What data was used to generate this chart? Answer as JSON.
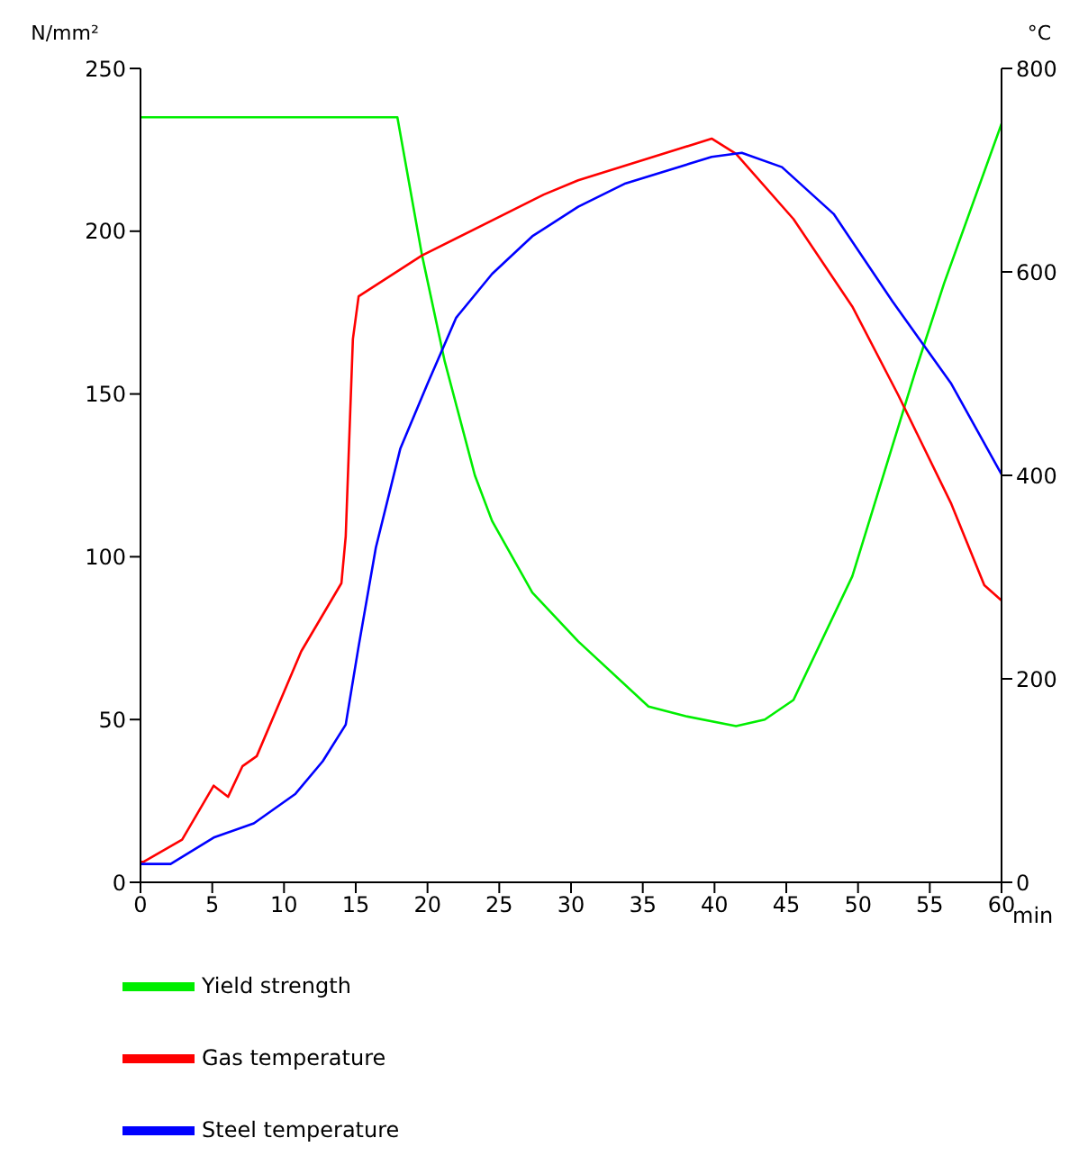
{
  "chart_data": {
    "type": "line",
    "xlabel": "min",
    "ylabel": "N/mm²",
    "y2label": "°C",
    "xlim": [
      0,
      60
    ],
    "xticks": [
      0,
      5,
      10,
      15,
      20,
      25,
      30,
      35,
      40,
      45,
      50,
      55,
      60
    ],
    "ylim": [
      0,
      250
    ],
    "yticks": [
      0,
      50,
      100,
      150,
      200,
      250
    ],
    "y2lim": [
      0,
      800
    ],
    "y2ticks": [
      0,
      200,
      400,
      600,
      800
    ],
    "grid": false,
    "legend": "bottom",
    "marker": "none",
    "line_style": "solid",
    "series": [
      {
        "name": "Yield strength",
        "color": "#00ee00",
        "x": [
          0,
          17.9,
          19.6,
          21.2,
          23.3,
          24.5,
          27.3,
          30.5,
          35.4,
          38,
          41.5,
          43.5,
          45.5,
          49.6,
          54,
          56,
          60
        ],
        "values": [
          235,
          235,
          193,
          160,
          125,
          111,
          89,
          74,
          54,
          51,
          48,
          50,
          56,
          94,
          157,
          184,
          233
        ]
      },
      {
        "name": "Gas temperature",
        "color": "#ff0000",
        "axis": "y2",
        "x": [
          0,
          0.2,
          2.9,
          5.1,
          6.1,
          7.1,
          8.1,
          11.2,
          14,
          14.3,
          14.8,
          15.2,
          19.6,
          28.1,
          30.5,
          39.8,
          41.5,
          45.5,
          49.6,
          52.8,
          56.5,
          58.8,
          60
        ],
        "values": [
          20,
          20,
          42,
          95,
          84,
          114,
          124,
          227,
          294,
          340,
          534,
          576,
          616,
          676,
          690,
          731,
          716,
          652,
          566,
          479,
          372,
          292,
          277
        ]
      },
      {
        "name": "Steel temperature",
        "color": "#0000ff",
        "axis": "y2",
        "x": [
          0,
          2.1,
          5.1,
          7.9,
          10.8,
          12.7,
          14.3,
          15.2,
          16.4,
          18.1,
          20,
          22,
          24.5,
          27.3,
          30.5,
          33.8,
          39.8,
          41.9,
          44.7,
          48.3,
          52.4,
          56.5,
          60
        ],
        "values": [
          18,
          18,
          44,
          58,
          87,
          119,
          155,
          232,
          329,
          426,
          490,
          555,
          598,
          635,
          664,
          687,
          713,
          717,
          703,
          657,
          571,
          490,
          401
        ]
      }
    ]
  }
}
